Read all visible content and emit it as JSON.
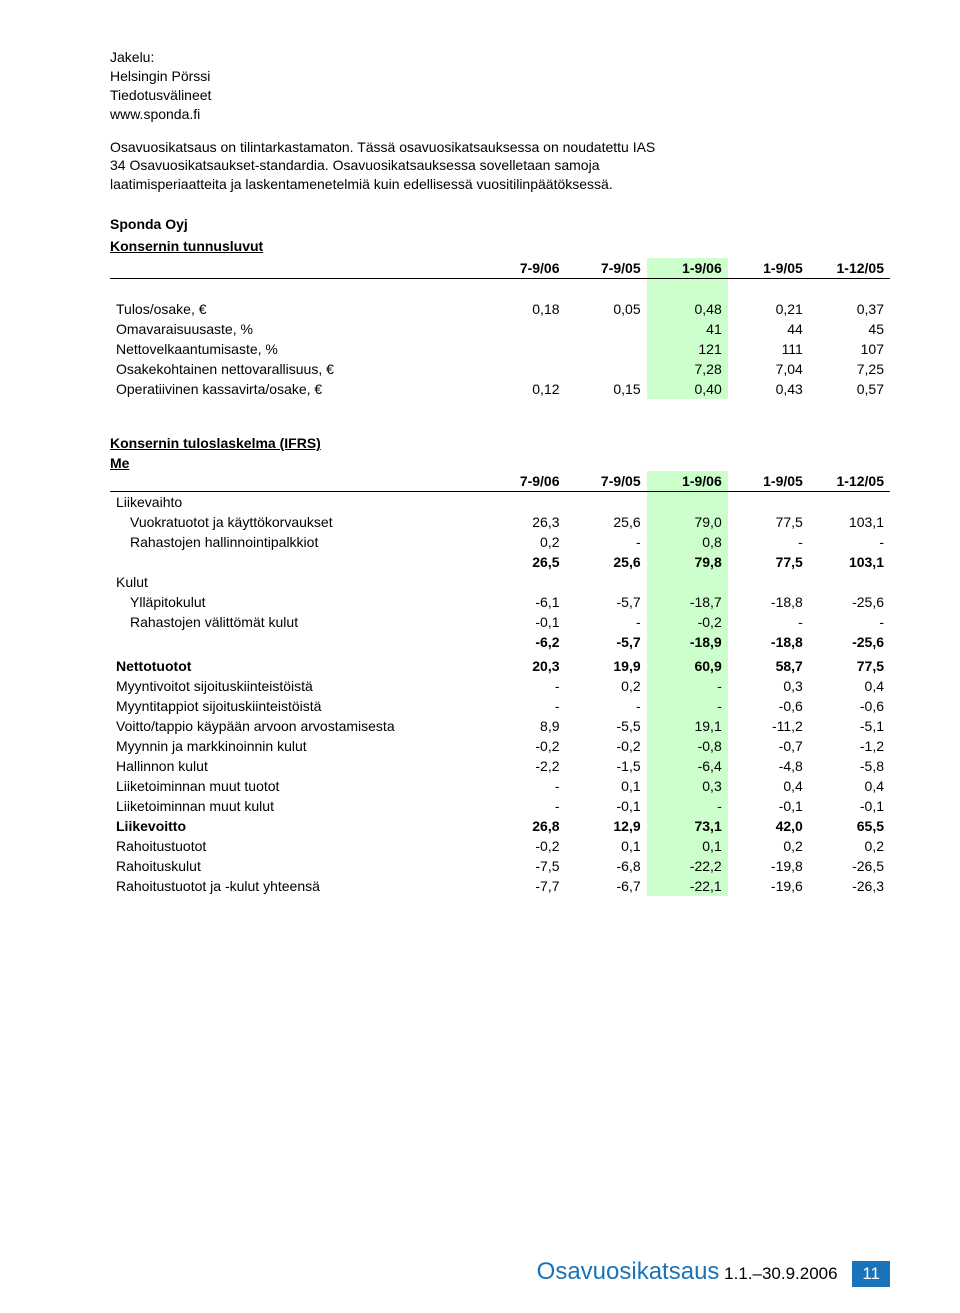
{
  "header_lines": [
    "Jakelu:",
    "Helsingin Pörssi",
    "Tiedotusvälineet",
    "www.sponda.fi"
  ],
  "intro": [
    "Osavuosikatsaus on tilintarkastamaton. Tässä osavuosikatsauksessa on noudatettu IAS",
    "34 Osavuosikatsaukset-standardia. Osavuosikatsauksessa sovelletaan samoja",
    "laatimisperiaatteita ja laskentamenetelmiä kuin edellisessä vuositilinpäätöksessä."
  ],
  "company": "Sponda Oyj",
  "periods": [
    "7-9/06",
    "7-9/05",
    "1-9/06",
    "1-9/05",
    "1-12/05"
  ],
  "t1_title": "Konsernin tunnusluvut",
  "t1": [
    {
      "l": "Tulos/osake, €",
      "v": [
        "0,18",
        "0,05",
        "0,48",
        "0,21",
        "0,37"
      ]
    },
    {
      "l": "Omavaraisuusaste, %",
      "v": [
        "",
        "",
        "41",
        "44",
        "45"
      ]
    },
    {
      "l": "Nettovelkaantumisaste, %",
      "v": [
        "",
        "",
        "121",
        "111",
        "107"
      ]
    },
    {
      "l": "Osakekohtainen nettovarallisuus, €",
      "v": [
        "",
        "",
        "7,28",
        "7,04",
        "7,25"
      ]
    },
    {
      "l": "Operatiivinen kassavirta/osake, €",
      "v": [
        "0,12",
        "0,15",
        "0,40",
        "0,43",
        "0,57"
      ]
    }
  ],
  "t2_title": "Konsernin tuloslaskelma (IFRS)",
  "t2_unit": "Me",
  "t2": [
    {
      "l": "Liikevaihto",
      "v": [
        "",
        "",
        "",
        "",
        ""
      ],
      "cat": true
    },
    {
      "l": "Vuokratuotot ja käyttökorvaukset",
      "v": [
        "26,3",
        "25,6",
        "79,0",
        "77,5",
        "103,1"
      ],
      "ind": true
    },
    {
      "l": "Rahastojen hallinnointipalkkiot",
      "v": [
        "0,2",
        "-",
        "0,8",
        "-",
        "-"
      ],
      "ind": true
    },
    {
      "l": "",
      "v": [
        "26,5",
        "25,6",
        "79,8",
        "77,5",
        "103,1"
      ],
      "bold": true
    },
    {
      "l": "Kulut",
      "v": [
        "",
        "",
        "",
        "",
        ""
      ],
      "cat": true
    },
    {
      "l": "Ylläpitokulut",
      "v": [
        "-6,1",
        "-5,7",
        "-18,7",
        "-18,8",
        "-25,6"
      ],
      "ind": true
    },
    {
      "l": "Rahastojen välittömät kulut",
      "v": [
        "-0,1",
        "-",
        "-0,2",
        "-",
        "-"
      ],
      "ind": true
    },
    {
      "l": "",
      "v": [
        "-6,2",
        "-5,7",
        "-18,9",
        "-18,8",
        "-25,6"
      ],
      "bold": true
    },
    {
      "l": "",
      "v": [
        "",
        "",
        "",
        "",
        ""
      ]
    },
    {
      "l": "Nettotuotot",
      "v": [
        "20,3",
        "19,9",
        "60,9",
        "58,7",
        "77,5"
      ],
      "bold": true
    },
    {
      "l": "Myyntivoitot sijoituskiinteistöistä",
      "v": [
        "-",
        "0,2",
        "-",
        "0,3",
        "0,4"
      ]
    },
    {
      "l": "Myyntitappiot sijoituskiinteistöistä",
      "v": [
        "-",
        "-",
        "-",
        "-0,6",
        "-0,6"
      ]
    },
    {
      "l": "Voitto/tappio käypään arvoon arvostamisesta",
      "v": [
        "8,9",
        "-5,5",
        "19,1",
        "-11,2",
        "-5,1"
      ]
    },
    {
      "l": "Myynnin ja markkinoinnin kulut",
      "v": [
        "-0,2",
        "-0,2",
        "-0,8",
        "-0,7",
        "-1,2"
      ]
    },
    {
      "l": "Hallinnon kulut",
      "v": [
        "-2,2",
        "-1,5",
        "-6,4",
        "-4,8",
        "-5,8"
      ]
    },
    {
      "l": "Liiketoiminnan muut tuotot",
      "v": [
        "-",
        "0,1",
        "0,3",
        "0,4",
        "0,4"
      ]
    },
    {
      "l": "Liiketoiminnan muut kulut",
      "v": [
        "-",
        "-0,1",
        "-",
        "-0,1",
        "-0,1"
      ]
    },
    {
      "l": "Liikevoitto",
      "v": [
        "26,8",
        "12,9",
        "73,1",
        "42,0",
        "65,5"
      ],
      "bold": true
    },
    {
      "l": "Rahoitustuotot",
      "v": [
        "-0,2",
        "0,1",
        "0,1",
        "0,2",
        "0,2"
      ]
    },
    {
      "l": "Rahoituskulut",
      "v": [
        "-7,5",
        "-6,8",
        "-22,2",
        "-19,8",
        "-26,5"
      ]
    },
    {
      "l": "Rahoitustuotot ja -kulut yhteensä",
      "v": [
        "-7,7",
        "-6,7",
        "-22,1",
        "-19,6",
        "-26,3"
      ]
    }
  ],
  "footer_title": "Osavuosikatsaus",
  "footer_range": "1.1.–30.9.2006",
  "footer_page": "11",
  "colors": {
    "highlight": "#ccffcc",
    "accent": "#1a73b8"
  }
}
